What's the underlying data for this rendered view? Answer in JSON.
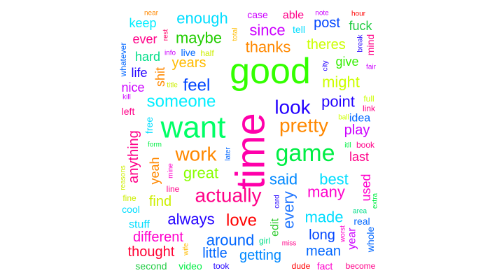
{
  "words": [
    {
      "text": "good",
      "color": "#33ff00"
    },
    {
      "text": "time",
      "color": "#ff00aa"
    },
    {
      "text": "want",
      "color": "#00ff66"
    },
    {
      "text": "game",
      "color": "#00ee44"
    },
    {
      "text": "pretty",
      "color": "#ff8800"
    },
    {
      "text": "work",
      "color": "#ff8800"
    },
    {
      "text": "actually",
      "color": "#ff0088"
    },
    {
      "text": "look",
      "color": "#2200ff"
    },
    {
      "text": "someone",
      "color": "#00eeff"
    },
    {
      "text": "love",
      "color": "#ff0000"
    },
    {
      "text": "maybe",
      "color": "#22cc00"
    },
    {
      "text": "feel",
      "color": "#0044ff"
    },
    {
      "text": "great",
      "color": "#88ff00"
    },
    {
      "text": "said",
      "color": "#0088ff"
    },
    {
      "text": "best",
      "color": "#00ddff"
    },
    {
      "text": "point",
      "color": "#2200ff"
    },
    {
      "text": "might",
      "color": "#ccff00"
    },
    {
      "text": "thanks",
      "color": "#ff8800"
    },
    {
      "text": "theres",
      "color": "#ccff00"
    },
    {
      "text": "since",
      "color": "#cc00ff"
    },
    {
      "text": "enough",
      "color": "#00ddff"
    },
    {
      "text": "years",
      "color": "#ffbb00"
    },
    {
      "text": "always",
      "color": "#2200ff"
    },
    {
      "text": "made",
      "color": "#00ddff"
    },
    {
      "text": "many",
      "color": "#ff00cc"
    },
    {
      "text": "every",
      "color": "#2277ff"
    },
    {
      "text": "around",
      "color": "#0066ff"
    },
    {
      "text": "different",
      "color": "#ff00cc"
    },
    {
      "text": "thought",
      "color": "#ff0033"
    },
    {
      "text": "little",
      "color": "#0066ff"
    },
    {
      "text": "getting",
      "color": "#0088ff"
    },
    {
      "text": "long",
      "color": "#0044ff"
    },
    {
      "text": "mean",
      "color": "#0066ff"
    },
    {
      "text": "anything",
      "color": "#ff0088"
    },
    {
      "text": "find",
      "color": "#ccee00"
    },
    {
      "text": "play",
      "color": "#cc00ff"
    },
    {
      "text": "last",
      "color": "#ff0088"
    },
    {
      "text": "used",
      "color": "#ff00cc"
    },
    {
      "text": "post",
      "color": "#0044ff"
    },
    {
      "text": "fuck",
      "color": "#22cc44"
    },
    {
      "text": "keep",
      "color": "#00eeff"
    },
    {
      "text": "ever",
      "color": "#ff0088"
    },
    {
      "text": "give",
      "color": "#33ee00"
    },
    {
      "text": "idea",
      "color": "#0066ff"
    },
    {
      "text": "shit",
      "color": "#ff8800"
    },
    {
      "text": "yeah",
      "color": "#ff8800"
    },
    {
      "text": "year",
      "color": "#cc00ff"
    },
    {
      "text": "whole",
      "color": "#0066ff"
    },
    {
      "text": "real",
      "color": "#0066ff"
    },
    {
      "text": "life",
      "color": "#2200ff"
    },
    {
      "text": "nice",
      "color": "#cc00ff"
    },
    {
      "text": "hard",
      "color": "#00dd88"
    },
    {
      "text": "edit",
      "color": "#33cc33"
    },
    {
      "text": "stuff",
      "color": "#00ddff"
    },
    {
      "text": "live",
      "color": "#0066ff"
    },
    {
      "text": "case",
      "color": "#cc00ff"
    },
    {
      "text": "able",
      "color": "#ff0088"
    },
    {
      "text": "tell",
      "color": "#00ddff"
    },
    {
      "text": "second",
      "color": "#22cc44"
    },
    {
      "text": "video",
      "color": "#00ee44"
    },
    {
      "text": "took",
      "color": "#2200ff"
    },
    {
      "text": "fact",
      "color": "#ff00cc"
    },
    {
      "text": "cool",
      "color": "#00ddff"
    },
    {
      "text": "free",
      "color": "#00ddff"
    },
    {
      "text": "left",
      "color": "#ff0088"
    },
    {
      "text": "near",
      "color": "#ff8800"
    },
    {
      "text": "rest",
      "color": "#ff0066"
    },
    {
      "text": "note",
      "color": "#cc00ff"
    },
    {
      "text": "hour",
      "color": "#ff0000"
    },
    {
      "text": "whatever",
      "color": "#0066ff"
    },
    {
      "text": "info",
      "color": "#cc00ff"
    },
    {
      "text": "half",
      "color": "#ccee00"
    },
    {
      "text": "total",
      "color": "#ffbb00"
    },
    {
      "text": "break",
      "color": "#2200ff"
    },
    {
      "text": "mind",
      "color": "#ff0088"
    },
    {
      "text": "fair",
      "color": "#cc00ff"
    },
    {
      "text": "city",
      "color": "#2200ff"
    },
    {
      "text": "kill",
      "color": "#cc00ff"
    },
    {
      "text": "title",
      "color": "#ccee00"
    },
    {
      "text": "full",
      "color": "#ccff00"
    },
    {
      "text": "link",
      "color": "#ff0088"
    },
    {
      "text": "ball",
      "color": "#ccff00"
    },
    {
      "text": "book",
      "color": "#ff0088"
    },
    {
      "text": "itll",
      "color": "#00ee44"
    },
    {
      "text": "form",
      "color": "#00ee44"
    },
    {
      "text": "later",
      "color": "#0066ff"
    },
    {
      "text": "mine",
      "color": "#ff00cc"
    },
    {
      "text": "reasons",
      "color": "#ccee00"
    },
    {
      "text": "line",
      "color": "#ff0088"
    },
    {
      "text": "card",
      "color": "#2200ff"
    },
    {
      "text": "fine",
      "color": "#ccee00"
    },
    {
      "text": "area",
      "color": "#00dd88"
    },
    {
      "text": "extra",
      "color": "#00ee44"
    },
    {
      "text": "worst",
      "color": "#ff00cc"
    },
    {
      "text": "girl",
      "color": "#00dd88"
    },
    {
      "text": "miss",
      "color": "#ff0088"
    },
    {
      "text": "wife",
      "color": "#ffbb00"
    },
    {
      "text": "dude",
      "color": "#ff0000"
    },
    {
      "text": "become",
      "color": "#ff0088"
    }
  ]
}
